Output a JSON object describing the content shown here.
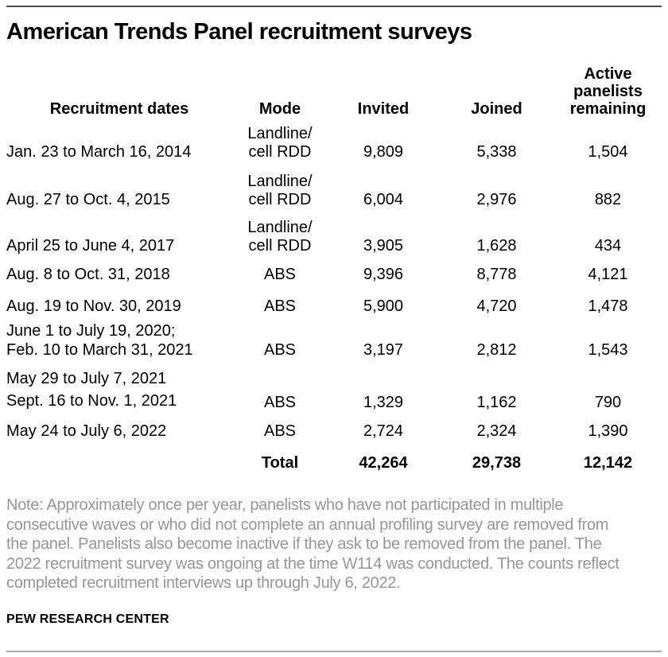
{
  "title": "American Trends Panel recruitment surveys",
  "table": {
    "headers": {
      "dates": "Recruitment dates",
      "mode": "Mode",
      "invited": "Invited",
      "joined": "Joined",
      "active": "Active\npanelists\nremaining"
    },
    "rows": [
      {
        "dates": "Jan. 23 to March 16, 2014",
        "mode": "Landline/\ncell RDD",
        "invited": "9,809",
        "joined": "5,338",
        "active": "1,504"
      },
      {
        "dates": "Aug. 27 to Oct. 4, 2015",
        "mode": "Landline/\ncell RDD",
        "invited": "6,004",
        "joined": "2,976",
        "active": "882"
      },
      {
        "dates": "April 25 to June 4, 2017",
        "mode": "Landline/\ncell RDD",
        "invited": "3,905",
        "joined": "1,628",
        "active": "434"
      },
      {
        "dates": "Aug. 8 to Oct. 31, 2018",
        "mode": "ABS",
        "invited": "9,396",
        "joined": "8,778",
        "active": "4,121"
      },
      {
        "dates": "Aug. 19 to Nov. 30, 2019",
        "mode": "ABS",
        "invited": "5,900",
        "joined": "4,720",
        "active": "1,478"
      },
      {
        "dates": "June 1 to July 19, 2020;\nFeb. 10 to March 31, 2021",
        "mode": "ABS",
        "invited": "3,197",
        "joined": "2,812",
        "active": "1,543"
      },
      {
        "dates": "May 29 to July 7, 2021\nSept. 16 to Nov. 1, 2021",
        "mode": "ABS",
        "invited": "1,329",
        "joined": "1,162",
        "active": "790"
      },
      {
        "dates": "May 24 to July 6, 2022",
        "mode": "ABS",
        "invited": "2,724",
        "joined": "2,324",
        "active": "1,390"
      }
    ],
    "total": {
      "label": "Total",
      "invited": "42,264",
      "joined": "29,738",
      "active": "12,142"
    }
  },
  "note": {
    "lines": [
      "Note: Approximately once per year, panelists who have not participated in multiple",
      "consecutive waves or who did not complete an annual profiling survey are removed from",
      "the panel. Panelists also become inactive if they ask to be removed from the panel. The",
      "2022 recruitment survey was ongoing at the time W114 was conducted. The counts reflect",
      "completed recruitment interviews up through July 6, 2022."
    ]
  },
  "footer": "PEW RESEARCH CENTER",
  "colors": {
    "text": "#000000",
    "note_text": "#969696",
    "rule_top": "#4a4a4a",
    "rule_bottom": "#a9a9a9",
    "background": "#ffffff"
  },
  "chart_data": {
    "type": "table",
    "title": "American Trends Panel recruitment surveys",
    "columns": [
      "Recruitment dates",
      "Mode",
      "Invited",
      "Joined",
      "Active panelists remaining"
    ],
    "rows": [
      [
        "Jan. 23 to March 16, 2014",
        "Landline/cell RDD",
        9809,
        5338,
        1504
      ],
      [
        "Aug. 27 to Oct. 4, 2015",
        "Landline/cell RDD",
        6004,
        2976,
        882
      ],
      [
        "April 25 to June 4, 2017",
        "Landline/cell RDD",
        3905,
        1628,
        434
      ],
      [
        "Aug. 8 to Oct. 31, 2018",
        "ABS",
        9396,
        8778,
        4121
      ],
      [
        "Aug. 19 to Nov. 30, 2019",
        "ABS",
        5900,
        4720,
        1478
      ],
      [
        "June 1 to July 19, 2020; Feb. 10 to March 31, 2021",
        "ABS",
        3197,
        2812,
        1543
      ],
      [
        "May 29 to July 7, 2021 Sept. 16 to Nov. 1, 2021",
        "ABS",
        1329,
        1162,
        790
      ],
      [
        "May 24 to July 6, 2022",
        "ABS",
        2724,
        2324,
        1390
      ],
      [
        "",
        "Total",
        42264,
        29738,
        12142
      ]
    ]
  }
}
